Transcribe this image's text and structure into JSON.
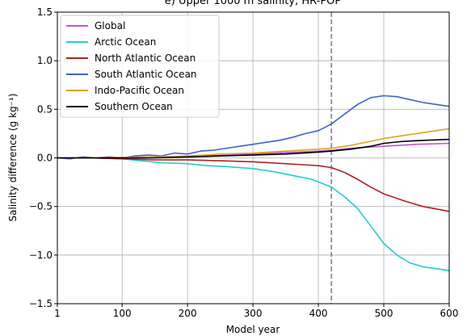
{
  "chart_data": {
    "type": "line",
    "title": "e) Upper 1000 m salinity, HR-POP",
    "xlabel": "Model year",
    "ylabel": "Salinity difference (g kg⁻¹)",
    "xlim": [
      1,
      600
    ],
    "ylim": [
      -1.5,
      1.5
    ],
    "xticks": [
      1,
      100,
      200,
      300,
      400,
      500,
      600
    ],
    "xtick_labels": [
      "1",
      "100",
      "200",
      "300",
      "400",
      "500",
      "600"
    ],
    "yticks": [
      -1.5,
      -1.0,
      -0.5,
      0.0,
      0.5,
      1.0,
      1.5
    ],
    "ytick_labels": [
      "−1.5",
      "−1.0",
      "−0.5",
      "0.0",
      "0.5",
      "1.0",
      "1.5"
    ],
    "grid": true,
    "legend_position": "top-left",
    "vline": {
      "x": 420,
      "style": "dashed",
      "color": "#7f7f7f"
    },
    "series": [
      {
        "name": "Global",
        "color": "#c452d6",
        "x": [
          1,
          50,
          100,
          150,
          200,
          250,
          300,
          350,
          400,
          420,
          450,
          500,
          550,
          600
        ],
        "y": [
          0.0,
          0.0,
          0.005,
          0.01,
          0.015,
          0.025,
          0.04,
          0.055,
          0.07,
          0.08,
          0.1,
          0.12,
          0.14,
          0.15
        ]
      },
      {
        "name": "Arctic Ocean",
        "color": "#1fcfcf",
        "x": [
          1,
          50,
          100,
          130,
          160,
          200,
          230,
          260,
          300,
          330,
          360,
          390,
          420,
          440,
          460,
          480,
          500,
          520,
          540,
          560,
          580,
          600
        ],
        "y": [
          0.0,
          0.0,
          -0.01,
          -0.03,
          -0.05,
          -0.06,
          -0.08,
          -0.09,
          -0.11,
          -0.14,
          -0.18,
          -0.22,
          -0.3,
          -0.4,
          -0.52,
          -0.7,
          -0.88,
          -1.0,
          -1.08,
          -1.12,
          -1.14,
          -1.16
        ]
      },
      {
        "name": "North Atlantic Ocean",
        "color": "#b22222",
        "x": [
          1,
          50,
          100,
          150,
          200,
          250,
          300,
          350,
          400,
          420,
          440,
          460,
          480,
          500,
          530,
          560,
          600
        ],
        "y": [
          0.0,
          0.0,
          -0.01,
          -0.02,
          -0.02,
          -0.03,
          -0.04,
          -0.06,
          -0.08,
          -0.1,
          -0.15,
          -0.22,
          -0.3,
          -0.37,
          -0.44,
          -0.5,
          -0.55
        ]
      },
      {
        "name": "South Atlantic Ocean",
        "color": "#3b64d4",
        "x": [
          1,
          20,
          40,
          60,
          80,
          100,
          120,
          140,
          160,
          180,
          200,
          220,
          240,
          260,
          280,
          300,
          320,
          340,
          360,
          380,
          400,
          420,
          440,
          460,
          480,
          500,
          520,
          540,
          560,
          580,
          600
        ],
        "y": [
          0.0,
          -0.01,
          0.01,
          0.0,
          0.01,
          0.0,
          0.02,
          0.03,
          0.02,
          0.05,
          0.04,
          0.07,
          0.08,
          0.1,
          0.12,
          0.14,
          0.16,
          0.18,
          0.21,
          0.25,
          0.28,
          0.35,
          0.45,
          0.55,
          0.62,
          0.64,
          0.63,
          0.6,
          0.57,
          0.55,
          0.53
        ]
      },
      {
        "name": "Indo-Pacific Ocean",
        "color": "#daa520",
        "x": [
          1,
          50,
          100,
          150,
          200,
          250,
          300,
          350,
          400,
          420,
          450,
          480,
          500,
          530,
          560,
          600
        ],
        "y": [
          0.0,
          0.0,
          0.005,
          0.01,
          0.02,
          0.04,
          0.05,
          0.07,
          0.09,
          0.1,
          0.13,
          0.17,
          0.2,
          0.23,
          0.26,
          0.3
        ]
      },
      {
        "name": "Southern Ocean",
        "color": "#000000",
        "x": [
          1,
          50,
          100,
          150,
          200,
          250,
          300,
          350,
          400,
          420,
          450,
          480,
          500,
          530,
          560,
          600
        ],
        "y": [
          0.0,
          0.0,
          0.0,
          0.0,
          0.01,
          0.02,
          0.03,
          0.04,
          0.06,
          0.07,
          0.09,
          0.12,
          0.15,
          0.17,
          0.18,
          0.19
        ]
      }
    ]
  }
}
